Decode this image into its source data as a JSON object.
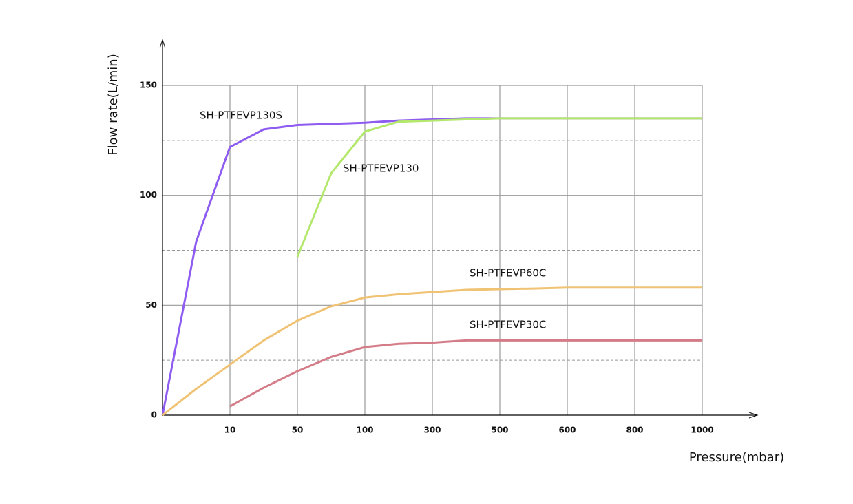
{
  "chart_data": {
    "type": "line",
    "x_label": "Pressure(mbar)",
    "y_label": "Flow rate(L/min)",
    "categories": [
      null,
      null,
      "10",
      null,
      "50",
      null,
      "100",
      null,
      "300",
      null,
      "500",
      null,
      "600",
      null,
      "800",
      null,
      "1000"
    ],
    "series": [
      {
        "name": "SH-PTFEVP130S",
        "color": "#8e5cf0",
        "values": [
          0,
          79,
          122,
          130,
          132,
          132.5,
          133,
          134,
          134.5,
          135,
          135,
          135,
          135,
          135,
          135,
          135,
          135
        ]
      },
      {
        "name": "SH-PTFEVP130",
        "color": "#b4e86c",
        "values": [
          null,
          null,
          null,
          null,
          72,
          110,
          129,
          133.5,
          134,
          134.5,
          135,
          135,
          135,
          135,
          135,
          135,
          135
        ]
      },
      {
        "name": "SH-PTFEVP60C",
        "color": "#f0c273",
        "values": [
          0,
          12,
          23,
          34,
          43,
          49.5,
          53.5,
          55,
          56,
          57,
          57.3,
          57.6,
          58,
          58,
          58,
          58,
          58
        ]
      },
      {
        "name": "SH-PTFEVP30C",
        "color": "#d47c88",
        "values": [
          null,
          null,
          4,
          12.5,
          20,
          26.5,
          31,
          32.5,
          33,
          34,
          34,
          34,
          34,
          34,
          34,
          34,
          34
        ]
      }
    ],
    "ylim": [
      0,
      150
    ],
    "yticks": [
      0,
      50,
      100,
      150
    ],
    "y_minor_grid": [
      25,
      75,
      125
    ],
    "grid": true
  }
}
